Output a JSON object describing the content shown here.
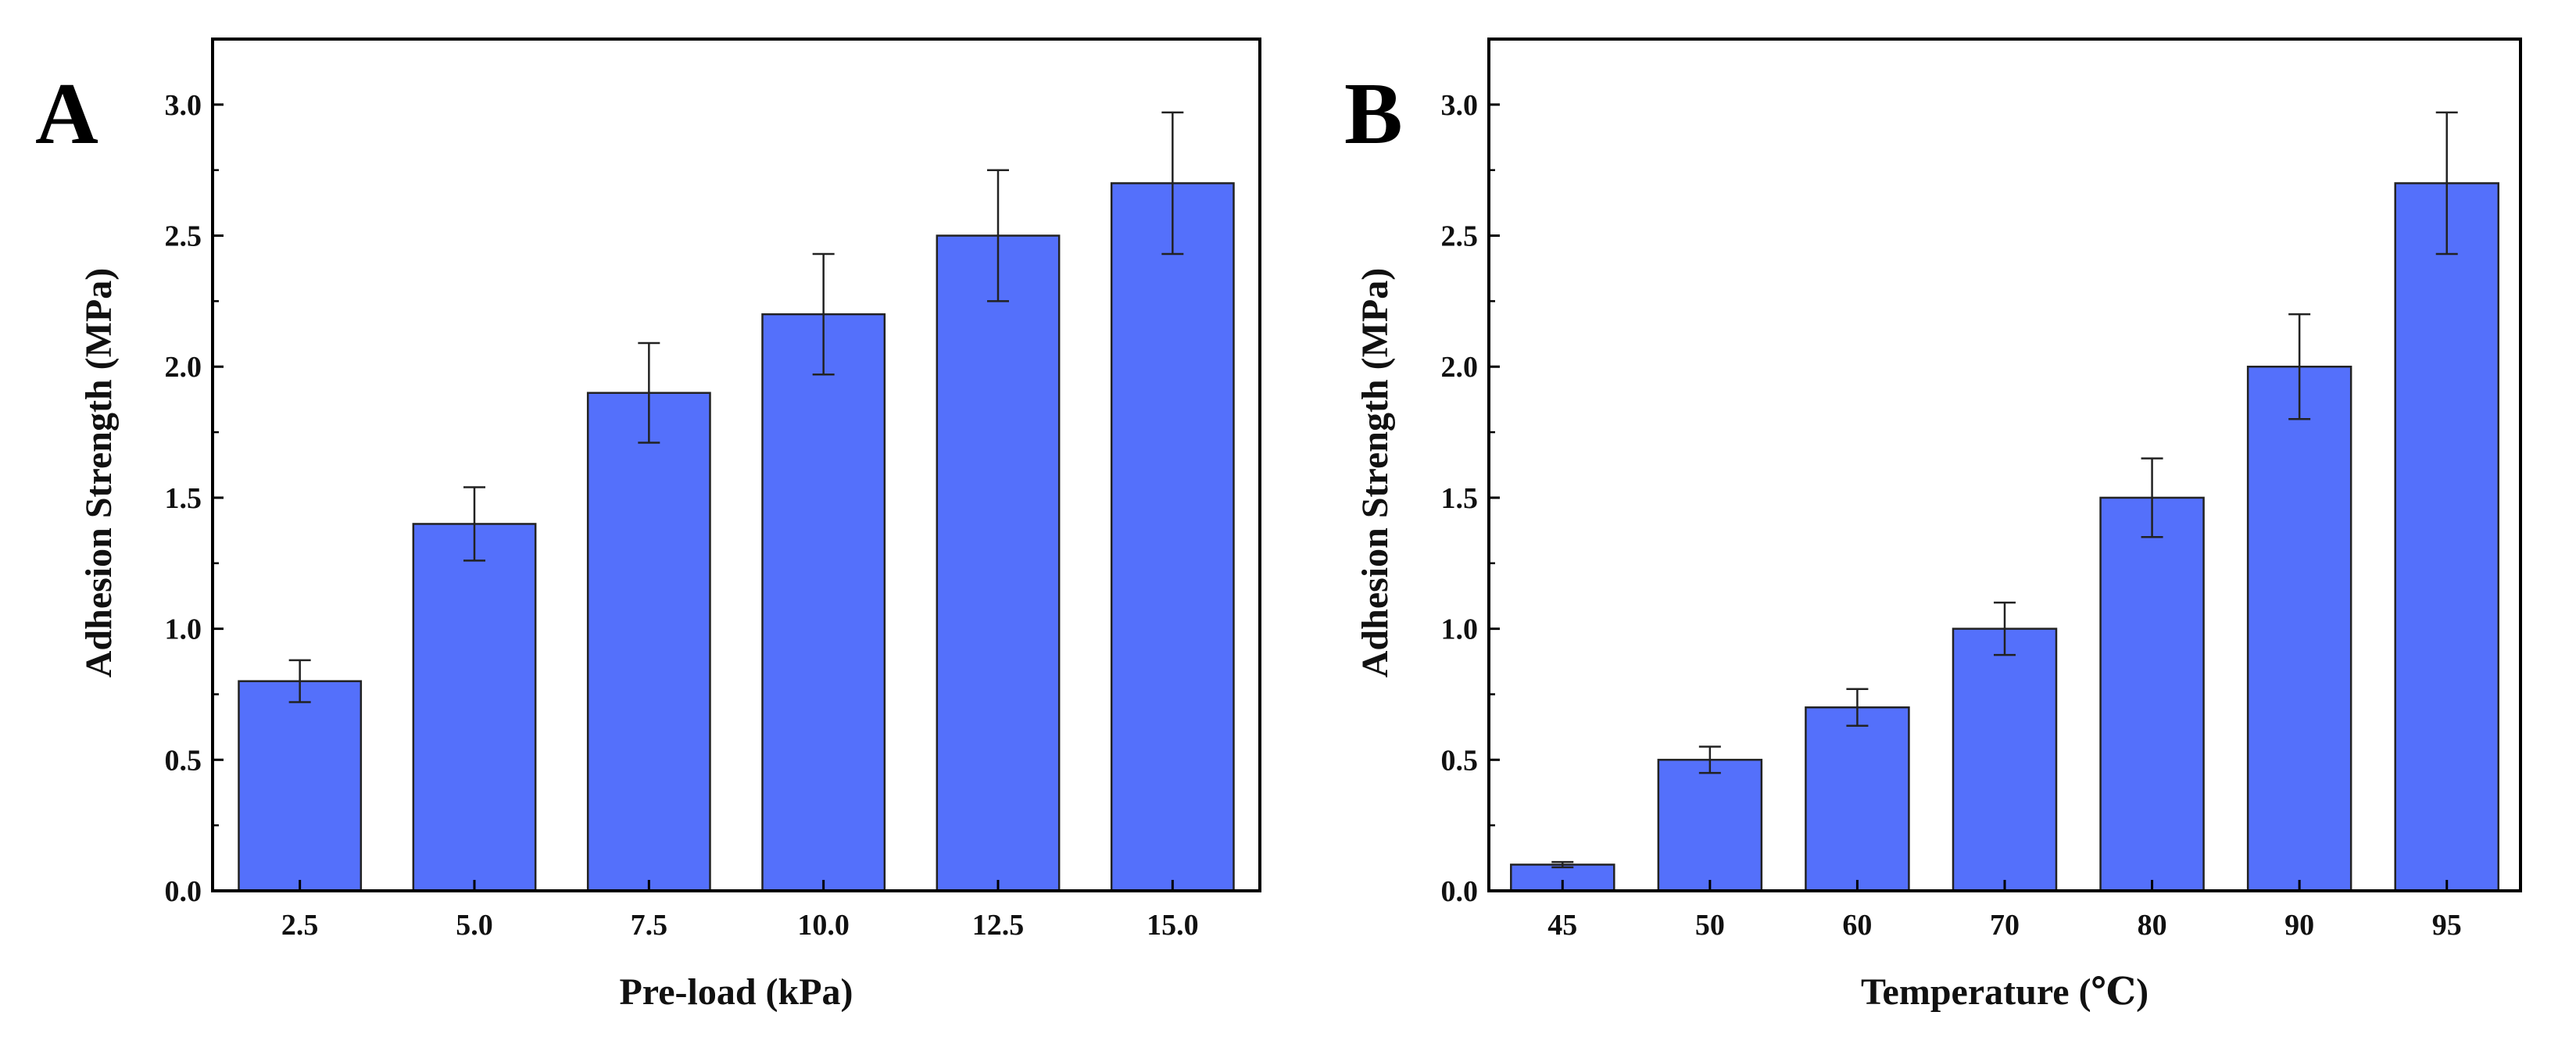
{
  "figure": {
    "background": "#ffffff",
    "bar_color": "#5470fb",
    "edge_color": "#222222"
  },
  "chart_data": [
    {
      "type": "bar",
      "panel": "A",
      "categories": [
        "2.5",
        "5.0",
        "7.5",
        "10.0",
        "12.5",
        "15.0"
      ],
      "values": [
        0.8,
        1.4,
        1.9,
        2.2,
        2.5,
        2.7
      ],
      "errors": [
        0.08,
        0.14,
        0.19,
        0.23,
        0.25,
        0.27
      ],
      "xlabel": "Pre-load (kPa)",
      "ylabel": "Adhesion Strength (MPa)",
      "ylim": [
        0,
        3.25
      ],
      "yticks": [
        0,
        0.5,
        1.0,
        1.5,
        2.0,
        2.5,
        3.0
      ],
      "ytick_labels": [
        "0.0",
        "0.5",
        "1.0",
        "1.5",
        "2.0",
        "2.5",
        "3.0"
      ],
      "grid": false
    },
    {
      "type": "bar",
      "panel": "B",
      "categories": [
        "45",
        "50",
        "60",
        "70",
        "80",
        "90",
        "95"
      ],
      "values": [
        0.1,
        0.5,
        0.7,
        1.0,
        1.5,
        2.0,
        2.7
      ],
      "errors": [
        0.01,
        0.05,
        0.07,
        0.1,
        0.15,
        0.2,
        0.27
      ],
      "xlabel": "Temperature (℃)",
      "ylabel": "Adhesion Strength (MPa)",
      "ylim": [
        0,
        3.25
      ],
      "yticks": [
        0,
        0.5,
        1.0,
        1.5,
        2.0,
        2.5,
        3.0
      ],
      "ytick_labels": [
        "0.0",
        "0.5",
        "1.0",
        "1.5",
        "2.0",
        "2.5",
        "3.0"
      ],
      "grid": false
    }
  ]
}
